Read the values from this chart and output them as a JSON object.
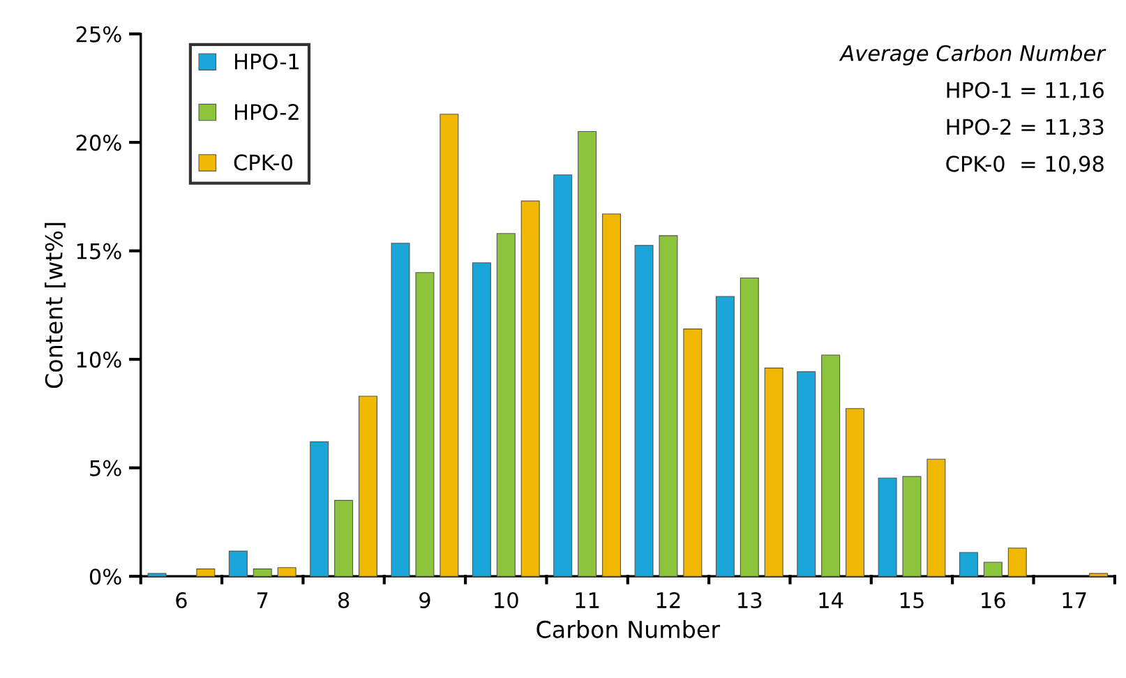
{
  "chart_data": {
    "type": "bar",
    "xlabel": "Carbon Number",
    "ylabel": "Content [wt%]",
    "categories": [
      "6",
      "7",
      "8",
      "9",
      "10",
      "11",
      "12",
      "13",
      "14",
      "15",
      "16",
      "17"
    ],
    "series": [
      {
        "name": "HPO-1",
        "color": "#1aa6d8",
        "values": [
          0.13,
          1.16,
          6.2,
          15.35,
          14.45,
          18.5,
          15.25,
          12.9,
          9.43,
          4.53,
          1.1,
          null
        ]
      },
      {
        "name": "HPO-2",
        "color": "#8cc43c",
        "values": [
          null,
          0.34,
          3.5,
          14.0,
          15.8,
          20.5,
          15.7,
          13.75,
          10.2,
          4.6,
          0.65,
          null
        ]
      },
      {
        "name": "CPK-0",
        "color": "#f0b800",
        "values": [
          0.34,
          0.4,
          8.3,
          21.3,
          17.3,
          16.7,
          11.4,
          9.6,
          7.73,
          5.4,
          1.3,
          0.13
        ]
      }
    ],
    "ylim": [
      0,
      25
    ],
    "yticks": [
      {
        "value": 0,
        "label": "0%"
      },
      {
        "value": 5,
        "label": "5%"
      },
      {
        "value": 10,
        "label": "10%"
      },
      {
        "value": 15,
        "label": "15%"
      },
      {
        "value": 20,
        "label": "20%"
      },
      {
        "value": 25,
        "label": "25%"
      }
    ],
    "annotations": [
      "Average Carbon Number",
      "HPO-1 = 11,16",
      "HPO-2 = 11,33",
      "CPK-0  = 10,98"
    ],
    "legend": "top left",
    "grid": false
  }
}
